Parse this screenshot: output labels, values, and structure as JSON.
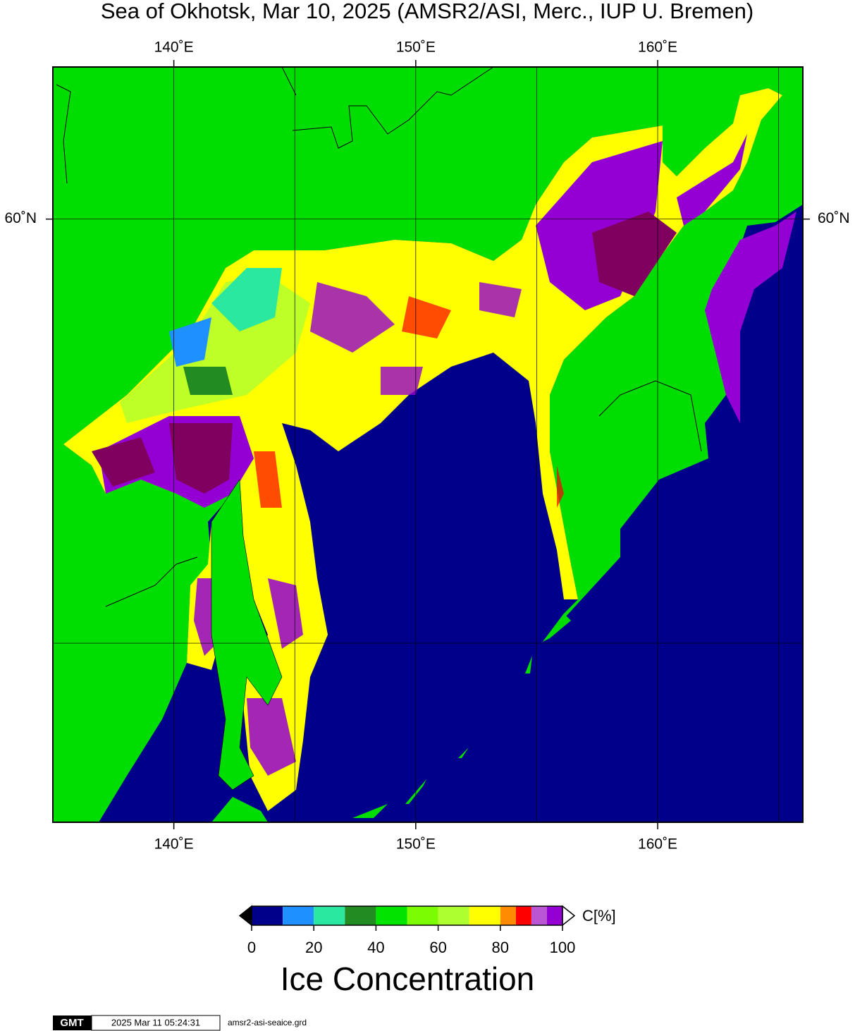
{
  "title": "Sea of Okhotsk, Mar 10, 2025 (AMSR2/ASI, Merc., IUP U. Bremen)",
  "map": {
    "projection": "mercator",
    "xlim": [
      135,
      166
    ],
    "ylim": [
      45,
      63
    ],
    "xticks": [
      {
        "value": 140,
        "label": "140˚E"
      },
      {
        "value": 150,
        "label": "150˚E"
      },
      {
        "value": 160,
        "label": "160˚E"
      }
    ],
    "yticks": [
      {
        "value": 60,
        "label": "60˚N"
      }
    ],
    "xgrid": [
      145,
      155,
      165
    ],
    "ygrid": [
      50
    ]
  },
  "colorbar": {
    "label": "C[%]",
    "title": "Ice Concentration",
    "lim": [
      0,
      100
    ],
    "ticks": [
      0,
      20,
      40,
      60,
      80,
      100
    ],
    "bounds": [
      0,
      10,
      20,
      30,
      40,
      50,
      60,
      70,
      80,
      85,
      90,
      95,
      100
    ],
    "colors": [
      "#00008b",
      "#1e90ff",
      "#2ae8a0",
      "#228b22",
      "#00e400",
      "#7cfc00",
      "#adff2f",
      "#ffff00",
      "#ff8c00",
      "#ff0000",
      "#ba55d3",
      "#9400d3"
    ]
  },
  "footer": {
    "logo": "GMT",
    "timestamp": "2025 Mar 11 05:24:31",
    "file": "amsr2-asi-seaice.grd"
  }
}
